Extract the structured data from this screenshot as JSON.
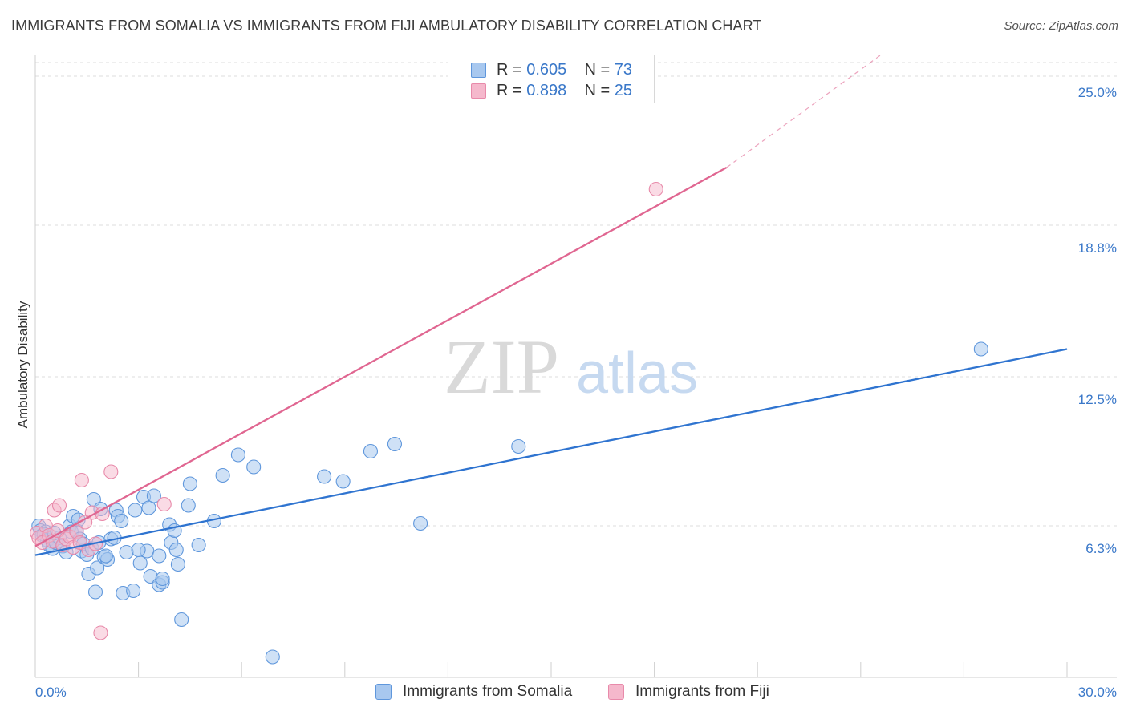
{
  "title": "IMMIGRANTS FROM SOMALIA VS IMMIGRANTS FROM FIJI AMBULATORY DISABILITY CORRELATION CHART",
  "source": "Source: ZipAtlas.com",
  "colors": {
    "somalia_fill": "#a8c8ef",
    "somalia_stroke": "#5f97dc",
    "somalia_line": "#2f74d0",
    "fiji_fill": "#f5b8cc",
    "fiji_stroke": "#e88aaa",
    "fiji_line": "#e06691",
    "axis_label": "#3a78c9",
    "grid": "#dddddd"
  },
  "legend": {
    "rows": [
      {
        "r_label": "R =",
        "r_value": "0.605",
        "n_label": "N =",
        "n_value": "73"
      },
      {
        "r_label": "R =",
        "r_value": "0.898",
        "n_label": "N =",
        "n_value": "25"
      }
    ]
  },
  "bottom_legend": {
    "somalia": "Immigrants from Somalia",
    "fiji": "Immigrants from Fiji"
  },
  "watermark": {
    "zip": "ZIP",
    "atlas": "atlas"
  },
  "chart_data": {
    "type": "scatter",
    "xlabel": "",
    "ylabel": "Ambulatory Disability",
    "xlim": [
      0,
      30
    ],
    "ylim": [
      0,
      25.9
    ],
    "x_tick_labels": [
      "0.0%",
      "30.0%"
    ],
    "y_ticks": [
      6.3,
      12.5,
      18.8,
      25.0
    ],
    "y_tick_labels": [
      "6.3%",
      "12.5%",
      "18.8%",
      "25.0%"
    ],
    "grid": true,
    "series": [
      {
        "name": "Immigrants from Somalia",
        "r": 0.605,
        "n": 73,
        "trend": {
          "x0": 0.0,
          "y0": 5.08,
          "x1": 30.0,
          "y1": 13.65
        },
        "points": [
          [
            0.1,
            6.3
          ],
          [
            0.15,
            6.1
          ],
          [
            0.2,
            5.9
          ],
          [
            0.3,
            6.05
          ],
          [
            0.35,
            5.7
          ],
          [
            0.4,
            5.5
          ],
          [
            0.5,
            5.35
          ],
          [
            0.6,
            5.6
          ],
          [
            0.7,
            5.8
          ],
          [
            0.8,
            5.45
          ],
          [
            0.9,
            5.2
          ],
          [
            1.0,
            6.3
          ],
          [
            1.05,
            6.05
          ],
          [
            1.1,
            6.7
          ],
          [
            1.2,
            6.1
          ],
          [
            1.3,
            5.75
          ],
          [
            1.35,
            5.25
          ],
          [
            1.4,
            5.55
          ],
          [
            1.5,
            5.1
          ],
          [
            1.55,
            4.3
          ],
          [
            1.65,
            5.35
          ],
          [
            1.7,
            7.4
          ],
          [
            1.75,
            3.55
          ],
          [
            1.8,
            4.55
          ],
          [
            1.9,
            7.0
          ],
          [
            2.0,
            5.0
          ],
          [
            2.1,
            4.9
          ],
          [
            2.2,
            5.75
          ],
          [
            2.3,
            5.8
          ],
          [
            2.35,
            6.95
          ],
          [
            2.4,
            6.7
          ],
          [
            2.5,
            6.5
          ],
          [
            2.55,
            3.5
          ],
          [
            2.65,
            5.2
          ],
          [
            2.85,
            3.6
          ],
          [
            2.9,
            6.95
          ],
          [
            3.05,
            4.75
          ],
          [
            3.15,
            7.5
          ],
          [
            3.25,
            5.25
          ],
          [
            3.3,
            7.05
          ],
          [
            3.35,
            4.2
          ],
          [
            3.45,
            7.55
          ],
          [
            3.6,
            3.85
          ],
          [
            3.6,
            5.05
          ],
          [
            3.7,
            3.95
          ],
          [
            3.7,
            4.1
          ],
          [
            3.9,
            6.35
          ],
          [
            3.95,
            5.6
          ],
          [
            4.05,
            6.1
          ],
          [
            4.1,
            5.3
          ],
          [
            4.15,
            4.7
          ],
          [
            4.25,
            2.4
          ],
          [
            4.45,
            7.15
          ],
          [
            4.5,
            8.05
          ],
          [
            4.75,
            5.5
          ],
          [
            5.2,
            6.5
          ],
          [
            5.45,
            8.4
          ],
          [
            5.9,
            9.25
          ],
          [
            6.35,
            8.75
          ],
          [
            6.9,
            0.85
          ],
          [
            8.4,
            8.35
          ],
          [
            8.95,
            8.15
          ],
          [
            9.75,
            9.4
          ],
          [
            10.45,
            9.7
          ],
          [
            11.2,
            6.4
          ],
          [
            14.05,
            9.6
          ],
          [
            27.5,
            13.65
          ],
          [
            0.25,
            5.95
          ],
          [
            1.25,
            6.55
          ],
          [
            2.05,
            5.05
          ],
          [
            3.0,
            5.3
          ],
          [
            0.55,
            6.0
          ],
          [
            1.85,
            5.6
          ]
        ]
      },
      {
        "name": "Immigrants from Fiji",
        "r": 0.898,
        "n": 25,
        "trend": {
          "x0": 0.0,
          "y0": 5.45,
          "x1": 20.1,
          "y1": 21.2,
          "dash_to_x": 24.6,
          "dash_to_y": 25.9
        },
        "points": [
          [
            0.05,
            6.0
          ],
          [
            0.1,
            5.8
          ],
          [
            0.2,
            5.6
          ],
          [
            0.3,
            6.3
          ],
          [
            0.4,
            5.9
          ],
          [
            0.5,
            5.65
          ],
          [
            0.55,
            6.95
          ],
          [
            0.65,
            6.1
          ],
          [
            0.7,
            7.15
          ],
          [
            0.8,
            5.5
          ],
          [
            0.9,
            5.75
          ],
          [
            1.0,
            5.85
          ],
          [
            1.1,
            5.4
          ],
          [
            1.2,
            6.05
          ],
          [
            1.3,
            5.6
          ],
          [
            1.35,
            8.2
          ],
          [
            1.45,
            6.45
          ],
          [
            1.55,
            5.3
          ],
          [
            1.65,
            6.85
          ],
          [
            1.75,
            5.55
          ],
          [
            1.9,
            1.85
          ],
          [
            1.95,
            6.8
          ],
          [
            2.2,
            8.55
          ],
          [
            3.75,
            7.2
          ],
          [
            18.05,
            20.3
          ]
        ]
      }
    ]
  }
}
